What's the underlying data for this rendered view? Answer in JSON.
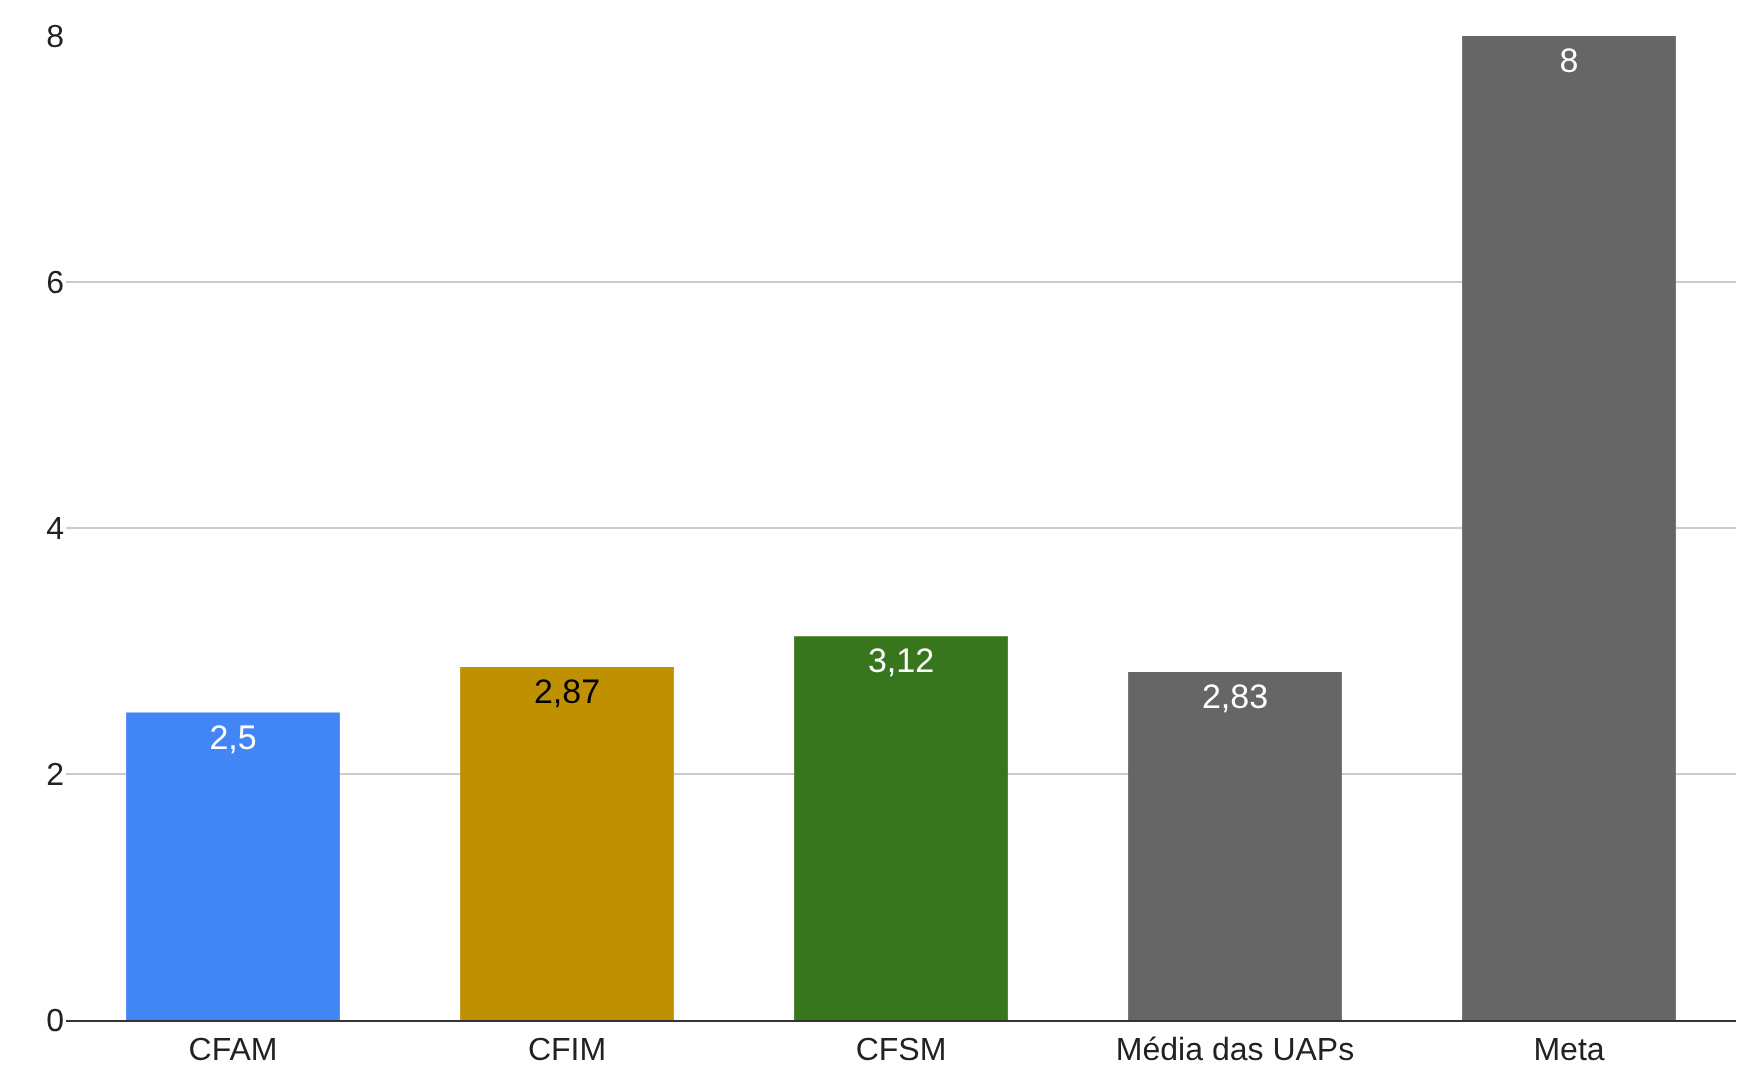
{
  "chart_data": {
    "type": "bar",
    "categories": [
      "CFAM",
      "CFIM",
      "CFSM",
      "Média das UAPs",
      "Meta"
    ],
    "values": [
      2.5,
      2.87,
      3.12,
      2.83,
      8
    ],
    "colors": [
      "#4285f4",
      "#bf9000",
      "#38761d",
      "#666666",
      "#666666"
    ],
    "value_labels": [
      "2,5",
      "2,87",
      "3,12",
      "2,83",
      "8"
    ],
    "ylim": [
      0,
      8
    ],
    "yticks": [
      0,
      2,
      4,
      6,
      8
    ],
    "grid": "y"
  }
}
